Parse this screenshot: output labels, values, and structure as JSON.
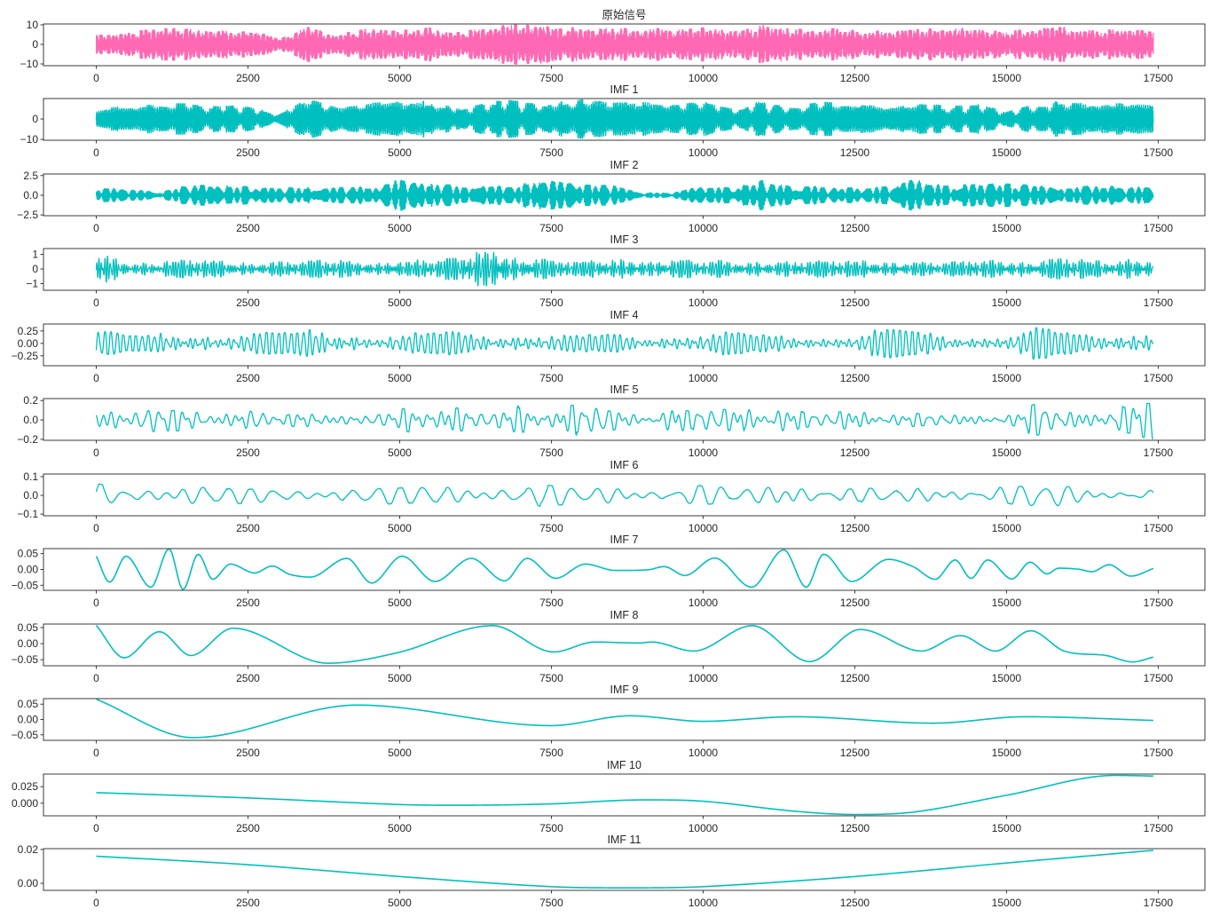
{
  "chart_data": {
    "type": "line",
    "layout": "12 stacked subplots",
    "xlim": [
      -870,
      18270
    ],
    "signal_length": 17420,
    "xticks": [
      0,
      2500,
      5000,
      7500,
      10000,
      12500,
      15000,
      17500
    ],
    "xticklabels": [
      "0",
      "2500",
      "5000",
      "7500",
      "10000",
      "12500",
      "15000",
      "17500"
    ],
    "panels": [
      {
        "title": "原始信号",
        "color": "#ff69b4",
        "ylim": [
          -10.9,
          10.45
        ],
        "yticks": [
          10,
          0,
          -10
        ],
        "yticklabels": [
          "10",
          "0",
          "−10"
        ],
        "kind": "dense",
        "period": 6,
        "envelope": [
          4,
          6,
          7,
          8,
          6,
          7,
          3,
          8,
          5,
          8,
          7,
          8,
          6,
          8,
          10,
          8,
          9,
          7,
          8,
          7,
          8,
          6,
          9,
          7,
          8,
          7,
          6,
          8,
          7,
          8,
          6,
          8,
          8,
          7,
          8,
          6
        ]
      },
      {
        "title": "IMF 1",
        "color": "#00bfbf",
        "ylim": [
          -10.4,
          10.0
        ],
        "yticks": [
          0,
          -10
        ],
        "yticklabels": [
          "0",
          "−10"
        ],
        "kind": "dense",
        "period": 8,
        "envelope": [
          4,
          6,
          7,
          7,
          6,
          7,
          2,
          9,
          5,
          7,
          8,
          8,
          5,
          9,
          8,
          7,
          9,
          7,
          8,
          7,
          8,
          5,
          8,
          6,
          8,
          7,
          5,
          7,
          6,
          7,
          3,
          7,
          8,
          7,
          7,
          6
        ]
      },
      {
        "title": "IMF 2",
        "color": "#00bfbf",
        "ylim": [
          -2.6,
          2.7
        ],
        "yticks": [
          2.5,
          0,
          -2.5
        ],
        "yticklabels": [
          "2.5",
          "0.0",
          "−2.5"
        ],
        "kind": "dense",
        "period": 20,
        "envelope": [
          1,
          0.8,
          0.3,
          1.3,
          1.2,
          1,
          0.9,
          0.9,
          1.1,
          1,
          1.9,
          1.3,
          1.2,
          1,
          1.3,
          2.2,
          1.3,
          1.2,
          0.3,
          0.3,
          1.2,
          1,
          1.9,
          1.1,
          1,
          0.9,
          1.2,
          1.8,
          1.2,
          1.3,
          1.4,
          1.1,
          1.0,
          1.1,
          1,
          0.9
        ]
      },
      {
        "title": "IMF 3",
        "color": "#00bfbf",
        "ylim": [
          -1.45,
          1.39
        ],
        "yticks": [
          1,
          0,
          -1
        ],
        "yticklabels": [
          "1",
          "0",
          "−1"
        ],
        "kind": "dense",
        "period": 45,
        "envelope": [
          1.3,
          0.4,
          0.4,
          0.6,
          0.5,
          0.4,
          0.5,
          0.5,
          0.6,
          0.4,
          0.5,
          0.6,
          0.8,
          1.4,
          0.8,
          0.6,
          0.5,
          0.7,
          0.5,
          0.6,
          0.5,
          0.6,
          0.5,
          0.5,
          0.6,
          0.6,
          0.5,
          0.5,
          0.4,
          0.6,
          0.5,
          0.5,
          0.7,
          0.5,
          0.7,
          0.5
        ]
      },
      {
        "title": "IMF 4",
        "color": "#00bfbf",
        "ylim": [
          -0.45,
          0.39
        ],
        "yticks": [
          0.25,
          0,
          -0.25
        ],
        "yticklabels": [
          "0.25",
          "0.00",
          "−0.25"
        ],
        "kind": "dense",
        "period": 90,
        "envelope": [
          0.3,
          0.15,
          0.2,
          0.3,
          0.2,
          0.25,
          0.2,
          0.3,
          0.25,
          0.2,
          0.2,
          0.2,
          0.25,
          0.2,
          0.3,
          0.2,
          0.15,
          0.2,
          0.15,
          0.2,
          0.25,
          0.2,
          0.15,
          0.2,
          0.15,
          0.2,
          0.3,
          0.2,
          0.2,
          0.15,
          0.25,
          0.35,
          0.2,
          0.2,
          0.25,
          0.3
        ]
      },
      {
        "title": "IMF 5",
        "color": "#00bfbf",
        "ylim": [
          -0.21,
          0.22
        ],
        "yticks": [
          0.2,
          0,
          -0.2
        ],
        "yticklabels": [
          "0.2",
          "0.0",
          "−0.2"
        ],
        "kind": "dense",
        "period": 170,
        "envelope": [
          0.15,
          0.05,
          0.12,
          0.13,
          0.05,
          0.1,
          0.03,
          0.12,
          0.04,
          0.04,
          0.1,
          0.15,
          0.12,
          0.05,
          0.15,
          0.12,
          0.15,
          0.1,
          0.04,
          0.15,
          0.1,
          0.12,
          0.14,
          0.1,
          0.05,
          0.1,
          0.06,
          0.07,
          0.05,
          0.05,
          0.04,
          0.16,
          0.08,
          0.1,
          0.18,
          0.2
        ]
      },
      {
        "title": "IMF 6",
        "color": "#00bfbf",
        "ylim": [
          -0.109,
          0.114
        ],
        "yticks": [
          0.1,
          0,
          -0.1
        ],
        "yticklabels": [
          "0.1",
          "0.0",
          "−0.1"
        ],
        "kind": "dense",
        "period": 330,
        "envelope": [
          0.07,
          0.03,
          0.05,
          0.09,
          0.05,
          0.04,
          0.04,
          0.03,
          0.05,
          0.05,
          0.04,
          0.06,
          0.05,
          0.05,
          0.06,
          0.05,
          0.04,
          0.05,
          0.04,
          0.04,
          0.05,
          0.04,
          0.05,
          0.1,
          0.03,
          0.04,
          0.03,
          0.04,
          0.05,
          0.04,
          0.04,
          0.07,
          0.05,
          0.04,
          0.03,
          0.04
        ]
      },
      {
        "title": "IMF 7",
        "color": "#00bfbf",
        "ylim": [
          -0.066,
          0.066
        ],
        "yticks": [
          0.05,
          0,
          -0.05
        ],
        "yticklabels": [
          "0.05",
          "0.00",
          "−0.05"
        ],
        "kind": "smooth",
        "points": [
          [
            0,
            0.042
          ],
          [
            220,
            -0.04
          ],
          [
            490,
            0.042
          ],
          [
            900,
            -0.056
          ],
          [
            1200,
            0.065
          ],
          [
            1430,
            -0.063
          ],
          [
            1680,
            0.048
          ],
          [
            1920,
            -0.031
          ],
          [
            2210,
            0.017
          ],
          [
            2610,
            -0.011
          ],
          [
            2900,
            0.011
          ],
          [
            3180,
            -0.015
          ],
          [
            3530,
            -0.024
          ],
          [
            4130,
            0.035
          ],
          [
            4540,
            -0.043
          ],
          [
            5040,
            0.042
          ],
          [
            5580,
            -0.038
          ],
          [
            6180,
            0.035
          ],
          [
            6730,
            -0.036
          ],
          [
            7100,
            0.035
          ],
          [
            7570,
            -0.028
          ],
          [
            8060,
            0.017
          ],
          [
            8550,
            -0.003
          ],
          [
            9090,
            -0.001
          ],
          [
            9360,
            0.009
          ],
          [
            9700,
            -0.019
          ],
          [
            10190,
            0.036
          ],
          [
            10800,
            -0.056
          ],
          [
            11330,
            0.062
          ],
          [
            11700,
            -0.056
          ],
          [
            11985,
            0.048
          ],
          [
            12450,
            -0.038
          ],
          [
            13055,
            0.032
          ],
          [
            13460,
            0.009
          ],
          [
            13825,
            -0.031
          ],
          [
            14155,
            0.03
          ],
          [
            14415,
            -0.028
          ],
          [
            14690,
            0.03
          ],
          [
            15090,
            -0.03
          ],
          [
            15390,
            0.023
          ],
          [
            15670,
            -0.014
          ],
          [
            15860,
            0.004
          ],
          [
            16180,
            0.001
          ],
          [
            16410,
            -0.007
          ],
          [
            16690,
            0.015
          ],
          [
            17050,
            -0.021
          ],
          [
            17420,
            0.003
          ]
        ]
      },
      {
        "title": "IMF 8",
        "color": "#00bfbf",
        "ylim": [
          -0.069,
          0.061
        ],
        "yticks": [
          0.05,
          0,
          -0.05
        ],
        "yticklabels": [
          "0.05",
          "0.00",
          "−0.05"
        ],
        "kind": "smooth",
        "points": [
          [
            0,
            0.057
          ],
          [
            460,
            -0.044
          ],
          [
            1040,
            0.037
          ],
          [
            1560,
            -0.037
          ],
          [
            2250,
            0.048
          ],
          [
            3820,
            -0.061
          ],
          [
            4970,
            -0.028
          ],
          [
            6530,
            0.056
          ],
          [
            7540,
            -0.026
          ],
          [
            8210,
            0.005
          ],
          [
            8950,
            0.002
          ],
          [
            9150,
            0.005
          ],
          [
            9845,
            -0.023
          ],
          [
            10810,
            0.056
          ],
          [
            11755,
            -0.056
          ],
          [
            12590,
            0.044
          ],
          [
            13600,
            -0.023
          ],
          [
            14240,
            0.025
          ],
          [
            14820,
            -0.023
          ],
          [
            15400,
            0.04
          ],
          [
            15950,
            -0.023
          ],
          [
            16640,
            -0.037
          ],
          [
            17080,
            -0.057
          ],
          [
            17420,
            -0.042
          ]
        ]
      },
      {
        "title": "IMF 9",
        "color": "#00bfbf",
        "ylim": [
          -0.068,
          0.068
        ],
        "yticks": [
          0.05,
          0,
          -0.05
        ],
        "yticklabels": [
          "0.05",
          "0.00",
          "−0.05"
        ],
        "kind": "smooth",
        "points": [
          [
            0,
            0.066
          ],
          [
            1600,
            -0.059
          ],
          [
            4300,
            0.047
          ],
          [
            7500,
            -0.02
          ],
          [
            8800,
            0.012
          ],
          [
            10000,
            -0.006
          ],
          [
            11500,
            0.009
          ],
          [
            13800,
            -0.012
          ],
          [
            15300,
            0.009
          ],
          [
            17420,
            -0.003
          ]
        ]
      },
      {
        "title": "IMF 10",
        "color": "#00bfbf",
        "ylim": [
          -0.019,
          0.044
        ],
        "yticks": [
          0.025,
          0
        ],
        "yticklabels": [
          "0.025",
          "0.000"
        ],
        "kind": "smooth",
        "points": [
          [
            0,
            0.016
          ],
          [
            2500,
            0.008
          ],
          [
            5000,
            -0.002
          ],
          [
            6000,
            -0.003
          ],
          [
            7500,
            -0.001
          ],
          [
            9000,
            0.005
          ],
          [
            10000,
            0.003
          ],
          [
            11500,
            -0.012
          ],
          [
            12500,
            -0.017
          ],
          [
            13500,
            -0.013
          ],
          [
            15000,
            0.012
          ],
          [
            16800,
            0.042
          ],
          [
            17420,
            0.041
          ]
        ]
      },
      {
        "title": "IMF 11",
        "color": "#00bfbf",
        "ylim": [
          -0.0042,
          0.0205
        ],
        "yticks": [
          0.02,
          0
        ],
        "yticklabels": [
          "0.02",
          "0.00"
        ],
        "kind": "smooth",
        "points": [
          [
            0,
            0.016
          ],
          [
            2500,
            0.011
          ],
          [
            5000,
            0.004
          ],
          [
            7500,
            -0.002
          ],
          [
            8750,
            -0.0027
          ],
          [
            10000,
            -0.002
          ],
          [
            12500,
            0.004
          ],
          [
            15000,
            0.012
          ],
          [
            17420,
            0.0195
          ]
        ]
      }
    ]
  }
}
